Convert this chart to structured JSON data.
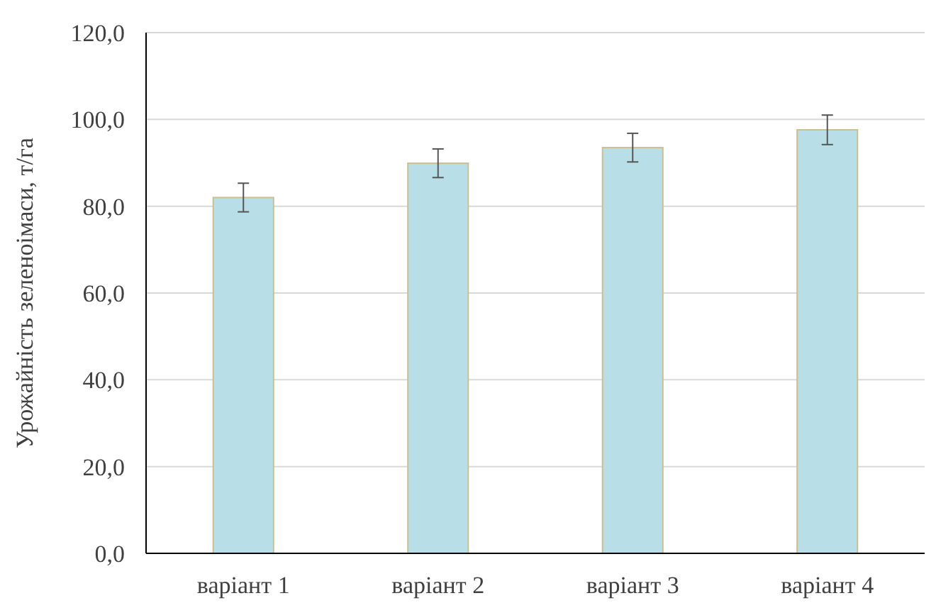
{
  "chart_data": {
    "type": "bar",
    "ylabel": "Урожайність зеленоімаси, т/га",
    "categories": [
      "варіант 1",
      "варіант 2",
      "варіант 3",
      "варіант 4"
    ],
    "values": [
      82.0,
      89.9,
      93.5,
      97.6
    ],
    "errors": [
      3.3,
      3.3,
      3.3,
      3.4
    ],
    "color": "#b8dfe8",
    "ylim": [
      0,
      120
    ],
    "yticks": [
      {
        "value": 0,
        "label": "0,0"
      },
      {
        "value": 20,
        "label": "20,0"
      },
      {
        "value": 40,
        "label": "40,0"
      },
      {
        "value": 60,
        "label": "60,0"
      },
      {
        "value": 80,
        "label": "80,0"
      },
      {
        "value": 100,
        "label": "100,0"
      },
      {
        "value": 120,
        "label": "120,0"
      }
    ],
    "grid": "y"
  }
}
